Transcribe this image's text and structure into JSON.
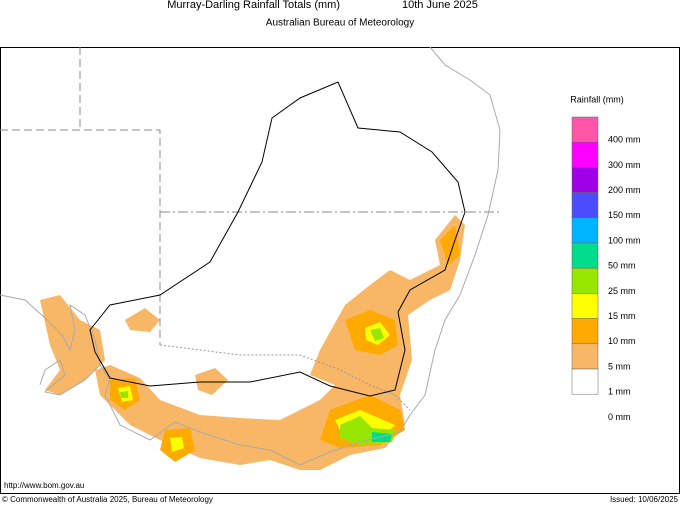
{
  "header": {
    "title": "Murray-Darling Rainfall Totals (mm)",
    "date": "10th June 2025",
    "subtitle": "Australian Bureau of Meteorology"
  },
  "legend": {
    "title": "Rainfall (mm)",
    "colors": [
      "#ff55a8",
      "#ff00ff",
      "#a000e6",
      "#4b4bff",
      "#00b4ff",
      "#00dc8c",
      "#96e600",
      "#ffff00",
      "#ffaa00",
      "#f7b766",
      "#ffffff"
    ],
    "labels": [
      "400 mm",
      "300 mm",
      "200 mm",
      "150 mm",
      "100 mm",
      "50 mm",
      "25 mm",
      "15 mm",
      "10 mm",
      "5 mm",
      "1 mm",
      "0 mm"
    ]
  },
  "footer": {
    "url": "http://www.bom.gov.au",
    "copyright": "© Commonwealth of Australia 2025, Bureau of Meteorology",
    "issued": "Issued: 10/06/2025"
  }
}
